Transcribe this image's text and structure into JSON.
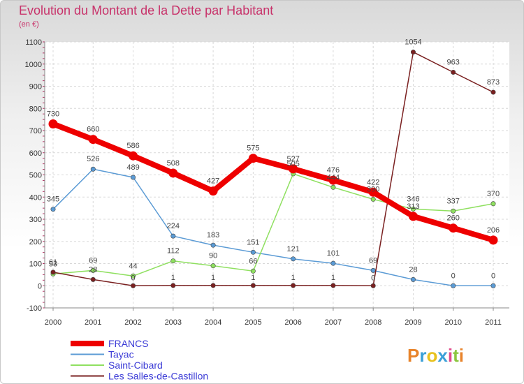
{
  "title": "Evolution du Montant de la Dette par Habitant",
  "subtitle": "(en €)",
  "logo": "Proxiti",
  "chart_data": {
    "type": "line",
    "title": "Evolution du Montant de la Dette par Habitant",
    "subtitle": "(en €)",
    "xlabel": "",
    "ylabel": "",
    "ylim": [
      -100,
      1100
    ],
    "yticks": [
      -100,
      0,
      100,
      200,
      300,
      400,
      500,
      600,
      700,
      800,
      900,
      1000,
      1100
    ],
    "categories": [
      "2000",
      "2001",
      "2002",
      "2003",
      "2004",
      "2005",
      "2006",
      "2007",
      "2008",
      "2009",
      "2010",
      "2011"
    ],
    "grid": true,
    "legend_position": "bottom-left",
    "series": [
      {
        "name": "FRANCS",
        "color": "#ee0000",
        "values": [
          730,
          660,
          586,
          508,
          427,
          575,
          527,
          476,
          422,
          313,
          260,
          206
        ]
      },
      {
        "name": "Tayac",
        "color": "#5b9bd5",
        "values": [
          345,
          526,
          489,
          224,
          183,
          151,
          121,
          101,
          69,
          28,
          0,
          0
        ]
      },
      {
        "name": "Saint-Cibard",
        "color": "#8fe060",
        "values": [
          53,
          69,
          44,
          112,
          90,
          66,
          505,
          444,
          390,
          346,
          337,
          370
        ]
      },
      {
        "name": "Les Salles-de-Castillon",
        "color": "#7a2020",
        "values": [
          61,
          28,
          0,
          1,
          1,
          1,
          1,
          1,
          0,
          1054,
          963,
          873
        ]
      }
    ]
  }
}
